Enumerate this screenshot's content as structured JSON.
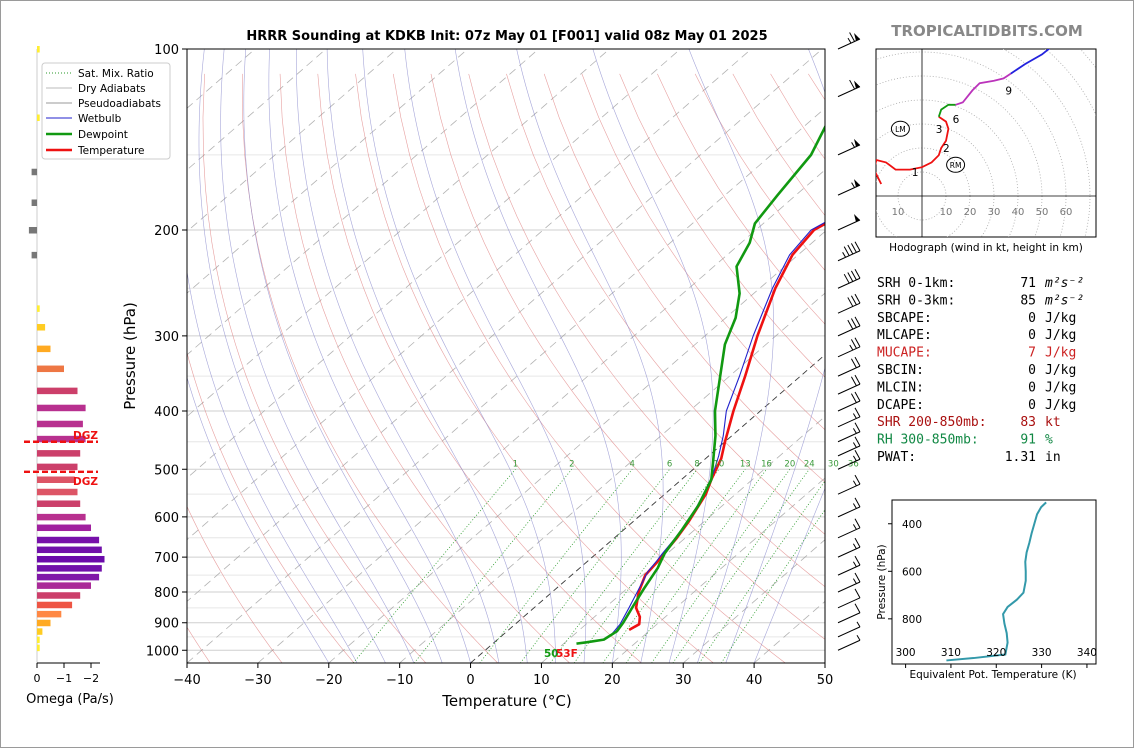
{
  "title": "HRRR Sounding at KDKB Init: 07z May 01 [F001] valid 08z May 01 2025",
  "brand": "TROPICALTIDBITS.COM",
  "chart_data": {
    "type": "line",
    "title": "HRRR Sounding at KDKB Init: 07z May 01 [F001] valid 08z May 01 2025",
    "xlabel": "Temperature (°C)",
    "ylabel": "Pressure (hPa)",
    "xlim": [
      -40,
      50
    ],
    "ylim": [
      1050,
      100
    ],
    "y_scale": "log",
    "x_ticks": [
      "−40",
      "−30",
      "−20",
      "−10",
      "0",
      "10",
      "20",
      "30",
      "40",
      "50"
    ],
    "y_ticks": [
      "100",
      "200",
      "300",
      "400",
      "500",
      "600",
      "700",
      "800",
      "900",
      "1000"
    ],
    "mixing_ratio_labels": [
      "1",
      "2",
      "4",
      "6",
      "8",
      "10",
      "13",
      "16",
      "20",
      "24",
      "30",
      "36"
    ],
    "legend": [
      "Sat. Mix. Ratio",
      "Dry Adiabats",
      "Pseudoadiabats",
      "Wetbulb",
      "Dewpoint",
      "Temperature"
    ],
    "legend_position": "top-left",
    "surface_dewpoint_label": "50",
    "surface_temp_label": "53F",
    "series": [
      {
        "name": "Temperature",
        "color": "#ee1111",
        "points": [
          [
            17,
            925
          ],
          [
            17.5,
            905
          ],
          [
            16.4,
            880
          ],
          [
            14.4,
            850
          ],
          [
            12.2,
            800
          ],
          [
            10.4,
            750
          ],
          [
            9.9,
            710
          ],
          [
            9.5,
            690
          ],
          [
            8.8,
            650
          ],
          [
            7.8,
            610
          ],
          [
            5.8,
            550
          ],
          [
            4.2,
            520
          ],
          [
            2.2,
            480
          ],
          [
            0.0,
            450
          ],
          [
            -3.8,
            400
          ],
          [
            -7.8,
            350
          ],
          [
            -12.6,
            300
          ],
          [
            -17.8,
            250
          ],
          [
            -20.8,
            220
          ],
          [
            -21.8,
            200
          ],
          [
            -18.6,
            175
          ],
          [
            -15.4,
            150
          ],
          [
            -10.6,
            130
          ],
          [
            -4.6,
            115
          ],
          [
            0.4,
            105
          ],
          [
            2.6,
            100
          ]
        ]
      },
      {
        "name": "Wetbulb",
        "color": "#2222cc",
        "points": [
          [
            15.3,
            945
          ],
          [
            14.8,
            905
          ],
          [
            13.4,
            850
          ],
          [
            11.7,
            790
          ],
          [
            10.2,
            740
          ],
          [
            9.7,
            710
          ],
          [
            9.3,
            690
          ],
          [
            8.6,
            650
          ],
          [
            7.4,
            600
          ],
          [
            5.5,
            550
          ],
          [
            3.6,
            510
          ],
          [
            1.4,
            475
          ],
          [
            -1.2,
            440
          ],
          [
            -4.8,
            400
          ],
          [
            -8.6,
            350
          ],
          [
            -13.2,
            300
          ],
          [
            -18.2,
            250
          ],
          [
            -21.2,
            220
          ],
          [
            -22.2,
            200
          ],
          [
            -18.9,
            175
          ],
          [
            -15.8,
            150
          ],
          [
            -10.8,
            130
          ],
          [
            -4.8,
            115
          ],
          [
            0.2,
            105
          ],
          [
            2.3,
            100
          ]
        ]
      },
      {
        "name": "Dewpoint",
        "color": "#119911",
        "points": [
          [
            11.8,
            975
          ],
          [
            13.0,
            970
          ],
          [
            15.0,
            960
          ],
          [
            15.5,
            930
          ],
          [
            15.0,
            900
          ],
          [
            13.6,
            840
          ],
          [
            12.4,
            790
          ],
          [
            11.0,
            730
          ],
          [
            9.6,
            690
          ],
          [
            8.2,
            630
          ],
          [
            6.6,
            575
          ],
          [
            4.2,
            520
          ],
          [
            1.5,
            485
          ],
          [
            -2.3,
            440
          ],
          [
            -6.4,
            400
          ],
          [
            -10.8,
            355
          ],
          [
            -15.8,
            310
          ],
          [
            -18.6,
            280
          ],
          [
            -22.0,
            255
          ],
          [
            -26.8,
            230
          ],
          [
            -28.8,
            210
          ],
          [
            -31.2,
            195
          ],
          [
            -32.6,
            175
          ],
          [
            -34.4,
            150
          ],
          [
            -37.8,
            130
          ],
          [
            -40.8,
            115
          ],
          [
            -43.6,
            100
          ]
        ]
      }
    ],
    "wind_barbs": [
      {
        "pressure": 100,
        "speed": 65
      },
      {
        "pressure": 120,
        "speed": 60
      },
      {
        "pressure": 150,
        "speed": 55
      },
      {
        "pressure": 175,
        "speed": 55
      },
      {
        "pressure": 200,
        "speed": 50
      },
      {
        "pressure": 225,
        "speed": 45
      },
      {
        "pressure": 250,
        "speed": 40
      },
      {
        "pressure": 275,
        "speed": 30
      },
      {
        "pressure": 300,
        "speed": 30
      },
      {
        "pressure": 325,
        "speed": 25
      },
      {
        "pressure": 350,
        "speed": 20
      },
      {
        "pressure": 375,
        "speed": 20
      },
      {
        "pressure": 400,
        "speed": 20
      },
      {
        "pressure": 425,
        "speed": 15
      },
      {
        "pressure": 450,
        "speed": 15
      },
      {
        "pressure": 475,
        "speed": 15
      },
      {
        "pressure": 500,
        "speed": 15
      },
      {
        "pressure": 550,
        "speed": 15
      },
      {
        "pressure": 600,
        "speed": 15
      },
      {
        "pressure": 650,
        "speed": 15
      },
      {
        "pressure": 700,
        "speed": 15
      },
      {
        "pressure": 750,
        "speed": 15
      },
      {
        "pressure": 800,
        "speed": 15
      },
      {
        "pressure": 850,
        "speed": 10
      },
      {
        "pressure": 900,
        "speed": 10
      },
      {
        "pressure": 950,
        "speed": 5
      },
      {
        "pressure": 1000,
        "speed": 5
      }
    ]
  },
  "omega": {
    "xlabel": "Omega (Pa/s)",
    "x_ticks": [
      "0",
      "−1",
      "−2"
    ],
    "dgz_label": "DGZ",
    "dgz_pressures": [
      450,
      505
    ],
    "bars": [
      {
        "p": 100,
        "v": -0.1,
        "c": "#ffee33"
      },
      {
        "p": 130,
        "v": -0.1,
        "c": "#ffee33"
      },
      {
        "p": 160,
        "v": 0.2,
        "c": "#777777"
      },
      {
        "p": 180,
        "v": 0.2,
        "c": "#777777"
      },
      {
        "p": 200,
        "v": 0.3,
        "c": "#777777"
      },
      {
        "p": 220,
        "v": 0.2,
        "c": "#777777"
      },
      {
        "p": 270,
        "v": -0.1,
        "c": "#ffee33"
      },
      {
        "p": 290,
        "v": -0.3,
        "c": "#ffcc22"
      },
      {
        "p": 315,
        "v": -0.5,
        "c": "#ffaa22"
      },
      {
        "p": 340,
        "v": -1.0,
        "c": "#ee7744"
      },
      {
        "p": 370,
        "v": -1.5,
        "c": "#cc3f6a"
      },
      {
        "p": 395,
        "v": -1.8,
        "c": "#b8308f"
      },
      {
        "p": 420,
        "v": -1.7,
        "c": "#b8308f"
      },
      {
        "p": 445,
        "v": -1.8,
        "c": "#b8308f"
      },
      {
        "p": 470,
        "v": -1.6,
        "c": "#cc3f6a"
      },
      {
        "p": 495,
        "v": -1.5,
        "c": "#cc3f6a"
      },
      {
        "p": 520,
        "v": -1.4,
        "c": "#dd5566"
      },
      {
        "p": 545,
        "v": -1.5,
        "c": "#dd5566"
      },
      {
        "p": 570,
        "v": -1.6,
        "c": "#cc3f6a"
      },
      {
        "p": 600,
        "v": -1.8,
        "c": "#b8308f"
      },
      {
        "p": 625,
        "v": -2.0,
        "c": "#a0209f"
      },
      {
        "p": 655,
        "v": -2.3,
        "c": "#7710aa"
      },
      {
        "p": 680,
        "v": -2.4,
        "c": "#7010aa"
      },
      {
        "p": 705,
        "v": -2.5,
        "c": "#6a0aaa"
      },
      {
        "p": 730,
        "v": -2.4,
        "c": "#7010aa"
      },
      {
        "p": 755,
        "v": -2.3,
        "c": "#8018a8"
      },
      {
        "p": 780,
        "v": -2.0,
        "c": "#aa2a98"
      },
      {
        "p": 810,
        "v": -1.6,
        "c": "#cc3f6a"
      },
      {
        "p": 840,
        "v": -1.3,
        "c": "#ee5544"
      },
      {
        "p": 870,
        "v": -0.9,
        "c": "#ff8844"
      },
      {
        "p": 900,
        "v": -0.5,
        "c": "#ffaa22"
      },
      {
        "p": 930,
        "v": -0.2,
        "c": "#ffcc22"
      },
      {
        "p": 960,
        "v": -0.1,
        "c": "#ffee33"
      },
      {
        "p": 990,
        "v": -0.1,
        "c": "#ffee33"
      }
    ]
  },
  "hodograph": {
    "caption": "Hodograph (wind in kt, height in km)",
    "ring_labels_left": [
      "10"
    ],
    "ring_labels_right": [
      "10",
      "20",
      "30",
      "40",
      "50",
      "60"
    ],
    "height_labels": [
      "1",
      "2",
      "3",
      "6",
      "9"
    ],
    "storm_motion": [
      "LM",
      "RM"
    ],
    "segments": [
      {
        "color": "#ee1111",
        "points": [
          [
            -17,
            5
          ],
          [
            -20,
            11
          ],
          [
            -19,
            15
          ],
          [
            -15,
            14
          ],
          [
            -11,
            11
          ],
          [
            -5,
            11
          ],
          [
            0,
            12
          ],
          [
            4,
            14
          ],
          [
            7,
            17
          ],
          [
            8,
            20
          ],
          [
            10,
            23
          ],
          [
            11,
            28
          ],
          [
            10,
            31
          ],
          [
            7,
            33
          ]
        ]
      },
      {
        "color": "#119911",
        "points": [
          [
            7,
            33
          ],
          [
            8,
            36
          ],
          [
            11,
            38
          ],
          [
            14,
            38
          ]
        ]
      },
      {
        "color": "#bb33bb",
        "points": [
          [
            14,
            38
          ],
          [
            17,
            39
          ],
          [
            21,
            44
          ],
          [
            24,
            47
          ],
          [
            30,
            48
          ],
          [
            34,
            49
          ],
          [
            37,
            51
          ]
        ]
      },
      {
        "color": "#2222dd",
        "points": [
          [
            37,
            51
          ],
          [
            43,
            55
          ],
          [
            50,
            59
          ],
          [
            55,
            63
          ],
          [
            68,
            63
          ],
          [
            85,
            63
          ]
        ]
      }
    ]
  },
  "indices": [
    {
      "label": "SRH 0-1km:",
      "value": "71",
      "unit": "m²s⁻²",
      "color": "#000000"
    },
    {
      "label": "SRH 0-3km:",
      "value": "85",
      "unit": "m²s⁻²",
      "color": "#000000"
    },
    {
      "label": "SBCAPE:",
      "value": "0",
      "unit": "J/kg",
      "color": "#000000"
    },
    {
      "label": "MLCAPE:",
      "value": "0",
      "unit": "J/kg",
      "color": "#000000"
    },
    {
      "label": "MUCAPE:",
      "value": "7",
      "unit": "J/kg",
      "color": "#cc2222"
    },
    {
      "label": "SBCIN:",
      "value": "0",
      "unit": "J/kg",
      "color": "#000000"
    },
    {
      "label": "MLCIN:",
      "value": "0",
      "unit": "J/kg",
      "color": "#000000"
    },
    {
      "label": "DCAPE:",
      "value": "0",
      "unit": "J/kg",
      "color": "#000000"
    },
    {
      "label": "SHR 200-850mb:",
      "value": "83",
      "unit": "kt",
      "color": "#aa1111"
    },
    {
      "label": "RH 300-850mb:",
      "value": "91",
      "unit": "%",
      "color": "#118844"
    },
    {
      "label": "PWAT:",
      "value": "1.31",
      "unit": "in",
      "color": "#000000"
    }
  ],
  "theta_e": {
    "xlabel": "Equivalent Pot. Temperature (K)",
    "ylabel": "Pressure (hPa)",
    "x_ticks": [
      "300",
      "310",
      "320",
      "330",
      "340"
    ],
    "y_ticks": [
      "400",
      "600",
      "800"
    ],
    "color": "#3399aa",
    "points": [
      [
        309,
        975
      ],
      [
        315,
        965
      ],
      [
        322,
        950
      ],
      [
        322.5,
        900
      ],
      [
        322.3,
        860
      ],
      [
        321.8,
        820
      ],
      [
        321.5,
        780
      ],
      [
        322.5,
        750
      ],
      [
        324.5,
        720
      ],
      [
        326,
        690
      ],
      [
        326.5,
        640
      ],
      [
        326.5,
        600
      ],
      [
        326.4,
        560
      ],
      [
        326.7,
        520
      ],
      [
        327.3,
        480
      ],
      [
        327.8,
        440
      ],
      [
        328.4,
        400
      ],
      [
        329,
        360
      ],
      [
        329.9,
        330
      ],
      [
        331,
        310
      ]
    ]
  }
}
